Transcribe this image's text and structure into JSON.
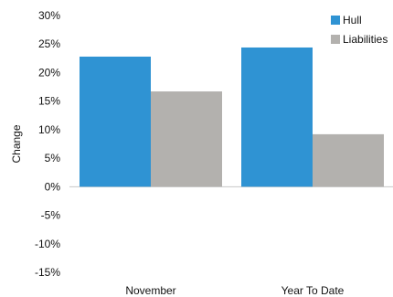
{
  "chart_data": {
    "type": "bar",
    "categories": [
      "November",
      "Year To Date"
    ],
    "series": [
      {
        "name": "Hull",
        "values": [
          22.8,
          24.4
        ],
        "color": "#2f93d3"
      },
      {
        "name": "Liabilities",
        "values": [
          16.7,
          9.2
        ],
        "color": "#b3b1ae"
      }
    ],
    "ylabel": "Change",
    "xlabel": "",
    "ylim": [
      -15,
      30
    ],
    "yticks": [
      "30%",
      "25%",
      "20%",
      "15%",
      "10%",
      "5%",
      "0%",
      "-5%",
      "-10%",
      "-15%"
    ],
    "legend_position": "top-right",
    "grid": false
  }
}
